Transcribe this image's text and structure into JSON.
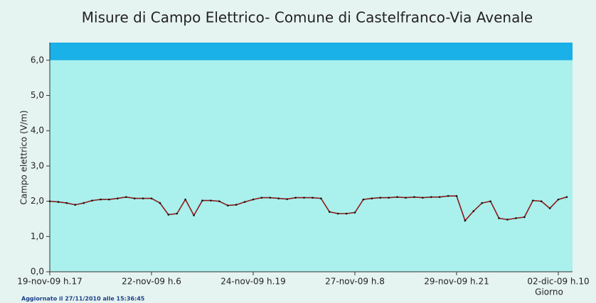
{
  "chart_data": {
    "type": "line",
    "title": "Misure di Campo Elettrico- Comune di Castelfranco-Via Avenale",
    "y_label": "Campo elettrico (V/m)",
    "x_label": "Giorno",
    "footer": "Aggiornato il 27/11/2010 alle 15:36:45",
    "categories": [
      "19-nov-09 h.17",
      null,
      null,
      null,
      null,
      null,
      null,
      null,
      null,
      null,
      null,
      null,
      "22-nov-09 h.6",
      null,
      null,
      null,
      null,
      null,
      null,
      null,
      null,
      null,
      null,
      null,
      "24-nov-09 h.19",
      null,
      null,
      null,
      null,
      null,
      null,
      null,
      null,
      null,
      null,
      null,
      "27-nov-09 h.8",
      null,
      null,
      null,
      null,
      null,
      null,
      null,
      null,
      null,
      null,
      null,
      "29-nov-09 h.21",
      null,
      null,
      null,
      null,
      null,
      null,
      null,
      null,
      null,
      null,
      null,
      "02-dic-09 h.10",
      null
    ],
    "series": [
      {
        "color": "#8b1a1a",
        "values": [
          2.0,
          1.98,
          1.95,
          1.9,
          1.95,
          2.02,
          2.05,
          2.05,
          2.08,
          2.12,
          2.08,
          2.08,
          2.08,
          1.95,
          1.62,
          1.65,
          2.05,
          1.6,
          2.02,
          2.02,
          2.0,
          1.88,
          1.9,
          1.98,
          2.05,
          2.1,
          2.1,
          2.08,
          2.06,
          2.1,
          2.1,
          2.1,
          2.08,
          1.7,
          1.65,
          1.65,
          1.68,
          2.05,
          2.08,
          2.1,
          2.1,
          2.12,
          2.1,
          2.12,
          2.1,
          2.12,
          2.12,
          2.15,
          2.15,
          1.45,
          1.72,
          1.95,
          2.0,
          1.52,
          1.48,
          1.52,
          1.55,
          2.02,
          2.0,
          1.8,
          2.05,
          2.12
        ]
      }
    ],
    "limit_band": {
      "range": [
        6,
        6.5
      ],
      "color": "#1ab0e8"
    },
    "plot_color": "#aaf0ec",
    "ylim": [
      0,
      6.5
    ],
    "yticks": [
      {
        "value": 0,
        "label": "0,0"
      },
      {
        "value": 1,
        "label": "1,0"
      },
      {
        "value": 2,
        "label": "2,0"
      },
      {
        "value": 3,
        "label": "3,0"
      },
      {
        "value": 4,
        "label": "4,0"
      },
      {
        "value": 5,
        "label": "5,0"
      },
      {
        "value": 6,
        "label": "6,0"
      }
    ]
  }
}
